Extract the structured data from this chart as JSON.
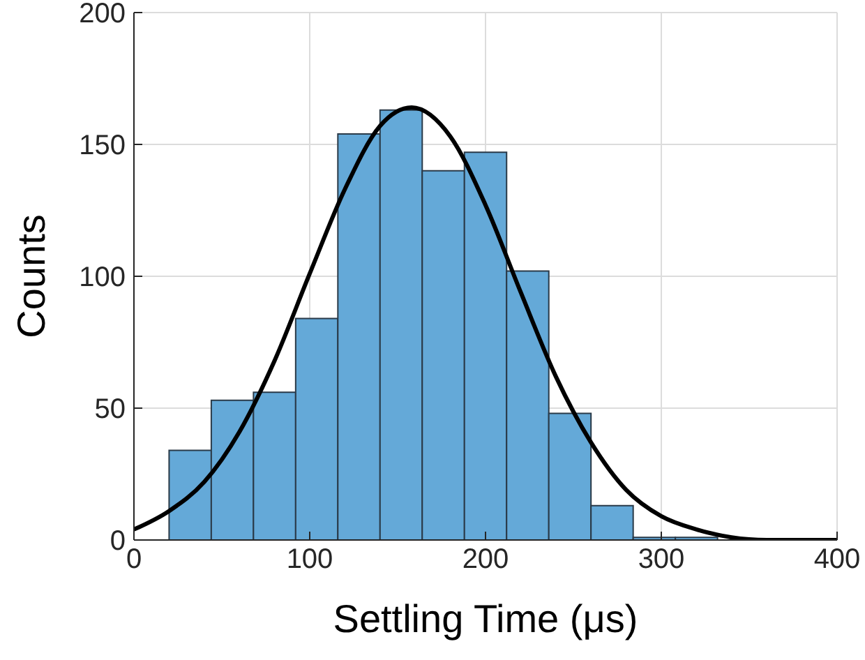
{
  "chart_data": {
    "type": "histogram",
    "xlabel": "Settling Time (μs)",
    "ylabel": "Counts",
    "bins": [
      20,
      44,
      68,
      92,
      116,
      140,
      164,
      188,
      212,
      236,
      260,
      284,
      308,
      332
    ],
    "values": [
      34,
      53,
      56,
      84,
      154,
      163,
      140,
      147,
      102,
      48,
      13,
      1,
      1
    ],
    "color": "#64a9d8",
    "series": [
      {
        "type": "line",
        "color": "#000000",
        "x": [
          0,
          20,
          40,
          60,
          80,
          100,
          120,
          140,
          158,
          180,
          200,
          220,
          240,
          260,
          280,
          300,
          320,
          340,
          360,
          380,
          400
        ],
        "values": [
          4,
          11,
          22,
          41,
          68,
          101,
          133,
          157,
          164,
          153,
          127,
          94,
          62,
          37,
          19,
          9,
          4,
          1,
          0,
          0,
          0
        ]
      }
    ],
    "xlim": [
      0,
      400
    ],
    "xticks": [
      0,
      100,
      200,
      300,
      400
    ],
    "ylim": [
      0,
      200
    ],
    "yticks": [
      0,
      50,
      100,
      150,
      200
    ],
    "grid": true
  }
}
